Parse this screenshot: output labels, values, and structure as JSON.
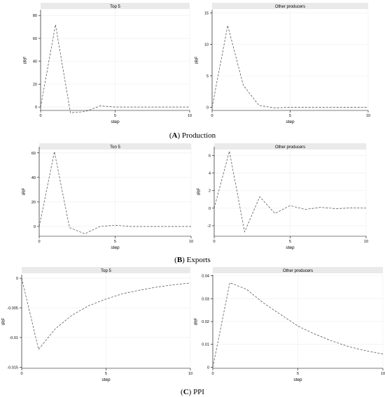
{
  "captions": [
    {
      "letter": "A",
      "text": "Production"
    },
    {
      "letter": "B",
      "text": "Exports"
    },
    {
      "letter": "C",
      "text": "PPI"
    }
  ],
  "chart_data": [
    {
      "type": "line",
      "title": "Top 5",
      "xlabel": "step",
      "ylabel": "IRF",
      "x": [
        0,
        1,
        2,
        3,
        4,
        5,
        6,
        7,
        8,
        9,
        10
      ],
      "series": [
        {
          "values": [
            0,
            72,
            -5,
            -4,
            1,
            0,
            0,
            0,
            0,
            0,
            0
          ]
        }
      ],
      "xlim": [
        0,
        10
      ],
      "ylim": [
        -3,
        85
      ],
      "xticks": [
        0,
        5,
        10
      ],
      "yticks": [
        0,
        20,
        40,
        60,
        80
      ],
      "ytick_labels": [
        "0",
        "20",
        "40",
        "60",
        "80"
      ],
      "grid": true
    },
    {
      "type": "line",
      "title": "Other producers",
      "xlabel": "step",
      "ylabel": "IRF",
      "x": [
        0,
        1,
        2,
        3,
        4,
        5,
        6,
        7,
        8,
        9,
        10
      ],
      "series": [
        {
          "values": [
            0,
            13,
            3.5,
            0.3,
            -0.1,
            0,
            0,
            0,
            0,
            0,
            0
          ]
        }
      ],
      "xlim": [
        0,
        10
      ],
      "ylim": [
        -0.5,
        15.5
      ],
      "xticks": [
        0,
        5,
        10
      ],
      "yticks": [
        0,
        5,
        10,
        15
      ],
      "ytick_labels": [
        "0",
        "5",
        "10",
        "15"
      ],
      "grid": true
    },
    {
      "type": "line",
      "title": "Top 5",
      "xlabel": "step",
      "ylabel": "IRF",
      "x": [
        0,
        1,
        2,
        3,
        4,
        5,
        6,
        7,
        8,
        9,
        10
      ],
      "series": [
        {
          "values": [
            0,
            61,
            -1,
            -6,
            0,
            1,
            0,
            0,
            0,
            0,
            0
          ]
        }
      ],
      "xlim": [
        0,
        10
      ],
      "ylim": [
        -8,
        65
      ],
      "xticks": [
        0,
        5,
        10
      ],
      "yticks": [
        0,
        20,
        40,
        60
      ],
      "ytick_labels": [
        "0",
        "20",
        "40",
        "60"
      ],
      "grid": true
    },
    {
      "type": "line",
      "title": "Other producers",
      "xlabel": "step",
      "ylabel": "IRF",
      "x": [
        0,
        1,
        2,
        3,
        4,
        5,
        6,
        7,
        8,
        9,
        10
      ],
      "series": [
        {
          "values": [
            0,
            6.5,
            -2.7,
            1.3,
            -0.6,
            0.3,
            -0.15,
            0.1,
            -0.05,
            0.03,
            0
          ]
        }
      ],
      "xlim": [
        0,
        10
      ],
      "ylim": [
        -3.2,
        7
      ],
      "xticks": [
        0,
        5,
        10
      ],
      "yticks": [
        -2,
        0,
        2,
        4,
        6
      ],
      "ytick_labels": [
        "-2",
        "0",
        "2",
        "4",
        "6"
      ],
      "grid": true
    },
    {
      "type": "line",
      "title": "Top 5",
      "xlabel": "step",
      "ylabel": "IRF",
      "x": [
        0,
        1,
        2,
        3,
        4,
        5,
        6,
        7,
        8,
        9,
        10
      ],
      "series": [
        {
          "values": [
            0,
            -0.012,
            -0.0085,
            -0.0062,
            -0.0046,
            -0.0035,
            -0.0026,
            -0.002,
            -0.0015,
            -0.0011,
            -0.0008
          ]
        }
      ],
      "xlim": [
        0,
        10
      ],
      "ylim": [
        -0.0152,
        0.0006
      ],
      "xticks": [
        0,
        5,
        10
      ],
      "yticks": [
        0,
        -0.005,
        -0.01,
        -0.015
      ],
      "ytick_labels": [
        "0",
        "-0.005",
        "-0.01",
        "-0.015"
      ],
      "grid": true
    },
    {
      "type": "line",
      "title": "Other producers",
      "xlabel": "step",
      "ylabel": "IRF",
      "x": [
        0,
        1,
        2,
        3,
        4,
        5,
        6,
        7,
        8,
        9,
        10
      ],
      "series": [
        {
          "values": [
            0,
            0.037,
            0.034,
            0.028,
            0.023,
            0.018,
            0.0145,
            0.0115,
            0.009,
            0.0072,
            0.0058
          ]
        }
      ],
      "xlim": [
        0,
        10
      ],
      "ylim": [
        -0.0005,
        0.0405
      ],
      "xticks": [
        0,
        5,
        10
      ],
      "yticks": [
        0,
        0.01,
        0.02,
        0.03,
        0.04
      ],
      "ytick_labels": [
        "0",
        "0.01",
        "0.02",
        "0.03",
        "0.04"
      ],
      "grid": true
    }
  ]
}
